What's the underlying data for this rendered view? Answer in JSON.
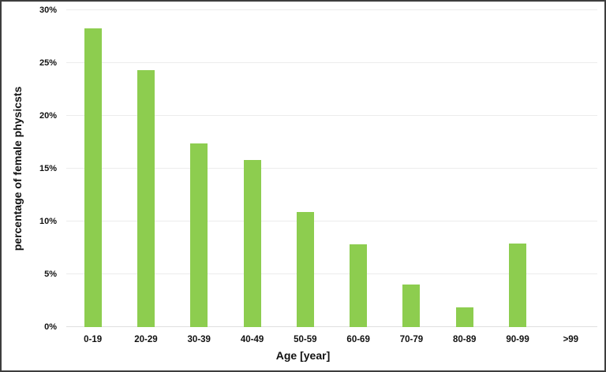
{
  "figure": {
    "background": "#ffffff",
    "border_color": "#3d3d3d"
  },
  "chart_data": {
    "type": "bar",
    "xlabel": "Age [year]",
    "ylabel": "percentage of female physicsts",
    "categories": [
      "0-19",
      "20-29",
      "30-39",
      "40-49",
      "50-59",
      "60-69",
      "70-79",
      "80-89",
      "90-99",
      ">99"
    ],
    "values": [
      28.3,
      24.3,
      17.4,
      15.8,
      10.9,
      7.8,
      4.0,
      1.9,
      7.9,
      0
    ],
    "ylim": [
      0,
      30
    ],
    "ytick_values": [
      0,
      5,
      10,
      15,
      20,
      25,
      30
    ],
    "ytick_labels": [
      "0%",
      "5%",
      "10%",
      "15%",
      "20%",
      "25%",
      "30%"
    ],
    "grid": true,
    "legend": false,
    "bar_color": "#8dcd4f",
    "gridline_color": "#ececec",
    "zero_line_color": "#e0e0e0",
    "text_color": "#111111"
  }
}
